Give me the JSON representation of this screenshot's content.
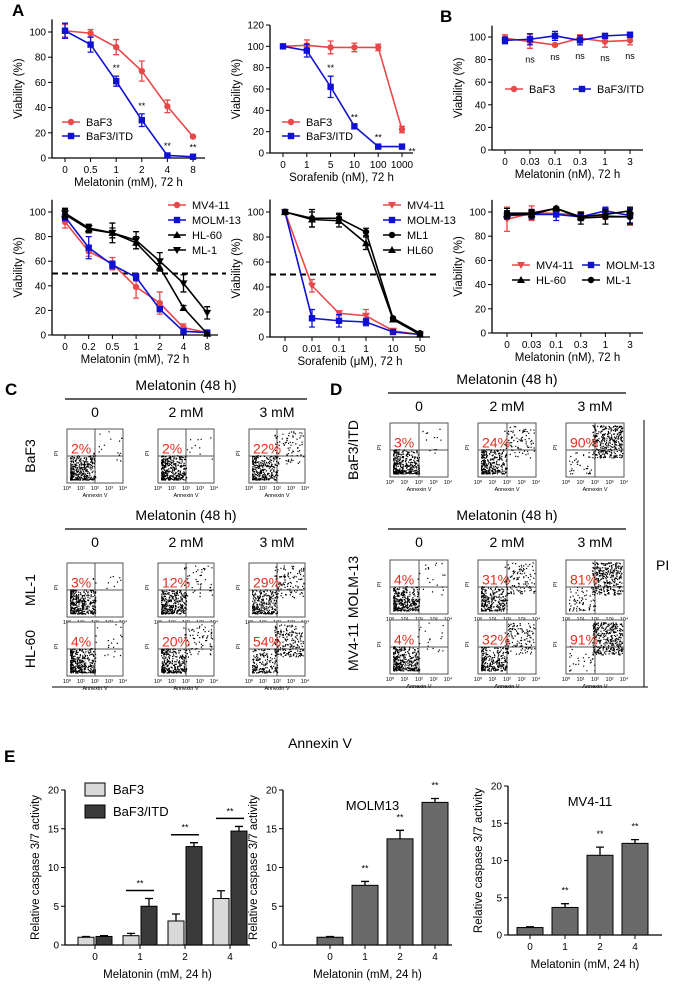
{
  "panel_labels": [
    "A",
    "B",
    "C",
    "D",
    "E"
  ],
  "colors": {
    "red": "#e8484a",
    "blue": "#1010d0",
    "black": "#000000",
    "light_bar": "#d9d9d9",
    "dark_bar": "#3a3a3a",
    "mid_bar": "#6a6a6a",
    "percent": "#e03020"
  },
  "chart_data": [
    {
      "id": "A1",
      "type": "line",
      "xlabel": "Melatonin (mM), 72 h",
      "ylabel": "Viability (%)",
      "categories": [
        "0",
        "0.5",
        "1",
        "2",
        "4",
        "8"
      ],
      "yticks": [
        0,
        20,
        40,
        60,
        80,
        100
      ],
      "ylim": [
        0,
        110
      ],
      "legend": "bottom-left",
      "series": [
        {
          "name": "BaF3",
          "color": "#e8484a",
          "marker": "circle",
          "values": [
            101,
            99,
            88,
            69,
            41,
            17
          ],
          "errors": [
            5,
            3,
            6,
            8,
            5,
            1
          ]
        },
        {
          "name": "BaF3/ITD",
          "color": "#1010d0",
          "marker": "square",
          "values": [
            101,
            90,
            61,
            30,
            2,
            1
          ],
          "errors": [
            6,
            6,
            4,
            5,
            1,
            1
          ]
        }
      ],
      "annotations": [
        {
          "x": "1",
          "text": "**"
        },
        {
          "x": "2",
          "text": "**"
        },
        {
          "x": "4",
          "text": "**"
        },
        {
          "x": "8",
          "text": "**"
        }
      ]
    },
    {
      "id": "A2",
      "type": "line",
      "xlabel": "Sorafenib (nM), 72 h",
      "ylabel": "Viability (%)",
      "categories": [
        "0",
        "1",
        "5",
        "10",
        "100",
        "1000"
      ],
      "yticks": [
        0,
        20,
        40,
        60,
        80,
        100,
        120
      ],
      "ylim": [
        0,
        120
      ],
      "legend": "bottom-left",
      "series": [
        {
          "name": "BaF3",
          "color": "#e8484a",
          "marker": "circle",
          "values": [
            100,
            101,
            99,
            99,
            99,
            22
          ],
          "errors": [
            1,
            5,
            6,
            4,
            3,
            3
          ]
        },
        {
          "name": "BaF3/ITD",
          "color": "#1010d0",
          "marker": "square",
          "values": [
            100,
            96,
            62,
            25,
            6,
            6
          ],
          "errors": [
            1,
            6,
            10,
            1,
            1,
            1
          ]
        }
      ],
      "annotations": [
        {
          "x": "5",
          "text": "**"
        },
        {
          "x": "10",
          "text": "**"
        },
        {
          "x": "100",
          "text": "**"
        },
        {
          "x": "1000",
          "text": "**"
        }
      ]
    },
    {
      "id": "B1",
      "type": "line",
      "xlabel": "Melatonin (nM), 72 h",
      "ylabel": "Viability (%)",
      "categories": [
        "0",
        "0.03",
        "0.1",
        "0.3",
        "1",
        "3"
      ],
      "yticks": [
        0,
        20,
        40,
        60,
        80,
        100
      ],
      "ylim": [
        0,
        110
      ],
      "legend": "middle",
      "series": [
        {
          "name": "BaF3",
          "color": "#e8484a",
          "marker": "circle",
          "values": [
            99,
            96,
            93,
            99,
            96,
            97
          ],
          "errors": [
            3,
            6,
            1,
            3,
            5,
            4
          ]
        },
        {
          "name": "BaF3/ITD",
          "color": "#1010d0",
          "marker": "square",
          "values": [
            97,
            98,
            101,
            97,
            101,
            102
          ],
          "errors": [
            3,
            5,
            4,
            4,
            1,
            2
          ]
        }
      ],
      "annotations": [
        {
          "x": "0.03",
          "text": "ns"
        },
        {
          "x": "0.1",
          "text": "ns"
        },
        {
          "x": "0.3",
          "text": "ns"
        },
        {
          "x": "1",
          "text": "ns"
        },
        {
          "x": "3",
          "text": "ns"
        }
      ]
    },
    {
      "id": "A3",
      "type": "line",
      "xlabel": "Melatonin (mM), 72 h",
      "ylabel": "Viability (%)",
      "categories": [
        "0",
        "0.2",
        "0.5",
        "1",
        "2",
        "4",
        "8"
      ],
      "yticks": [
        0,
        20,
        40,
        60,
        80,
        100
      ],
      "ylim": [
        0,
        110
      ],
      "reference_line": 50,
      "legend": "top-right",
      "series": [
        {
          "name": "MV4-11",
          "color": "#e8484a",
          "marker": "circle",
          "values": [
            92,
            68,
            58,
            39,
            26,
            6,
            2
          ],
          "errors": [
            5,
            4,
            5,
            9,
            9,
            3,
            1
          ]
        },
        {
          "name": "MOLM-13",
          "color": "#1010d0",
          "marker": "square",
          "values": [
            96,
            71,
            57,
            47,
            21,
            3,
            2
          ],
          "errors": [
            3,
            9,
            3,
            3,
            2,
            1,
            1
          ]
        },
        {
          "name": "HL-60",
          "color": "#000000",
          "marker": "triangle-up",
          "values": [
            98,
            86,
            83,
            75,
            55,
            22,
            1
          ],
          "errors": [
            4,
            3,
            4,
            5,
            3,
            2,
            1
          ]
        },
        {
          "name": "ML-1",
          "color": "#000000",
          "marker": "triangle-down",
          "values": [
            99,
            87,
            83,
            77,
            60,
            42,
            18
          ],
          "errors": [
            4,
            3,
            8,
            7,
            7,
            7,
            5
          ]
        }
      ]
    },
    {
      "id": "A4",
      "type": "line",
      "xlabel": "Sorafenib (μM), 72 h",
      "ylabel": "Viability (%)",
      "categories": [
        "0",
        "0.01",
        "0.1",
        "1",
        "10",
        "50"
      ],
      "yticks": [
        0,
        20,
        40,
        60,
        80,
        100
      ],
      "ylim": [
        0,
        110
      ],
      "reference_line": 50,
      "legend": "top-right",
      "series": [
        {
          "name": "MV4-11",
          "color": "#e8484a",
          "marker": "triangle-down",
          "values": [
            100,
            41,
            19,
            17,
            5,
            2
          ],
          "errors": [
            1,
            5,
            2,
            5,
            1,
            1
          ]
        },
        {
          "name": "MOLM-13",
          "color": "#1010d0",
          "marker": "square",
          "values": [
            100,
            15,
            13,
            12,
            4,
            2
          ],
          "errors": [
            1,
            7,
            5,
            3,
            1,
            1
          ]
        },
        {
          "name": "ML1",
          "color": "#000000",
          "marker": "circle",
          "values": [
            100,
            95,
            95,
            84,
            15,
            3
          ],
          "errors": [
            1,
            7,
            4,
            3,
            1,
            1
          ]
        },
        {
          "name": "HL60",
          "color": "#000000",
          "marker": "triangle-up",
          "values": [
            100,
            94,
            93,
            75,
            14,
            2
          ],
          "errors": [
            1,
            6,
            5,
            5,
            1,
            1
          ]
        }
      ]
    },
    {
      "id": "B2",
      "type": "line",
      "xlabel": "Melatonin (nM), 72 h",
      "ylabel": "Viability (%)",
      "categories": [
        "0",
        "0.03",
        "0.1",
        "0.3",
        "1",
        "3"
      ],
      "yticks": [
        0,
        20,
        40,
        60,
        80,
        100
      ],
      "ylim": [
        0,
        110
      ],
      "legend": "middle",
      "series": [
        {
          "name": "MV4-11",
          "color": "#e8484a",
          "marker": "triangle-down",
          "values": [
            94,
            99,
            99,
            97,
            97,
            96
          ],
          "errors": [
            10,
            6,
            3,
            3,
            3,
            7
          ]
        },
        {
          "name": "MOLM-13",
          "color": "#1010d0",
          "marker": "square",
          "values": [
            97,
            98,
            98,
            96,
            101,
            97
          ],
          "errors": [
            3,
            4,
            5,
            3,
            3,
            6
          ]
        },
        {
          "name": "HL-60",
          "color": "#000000",
          "marker": "triangle-up",
          "values": [
            98,
            98,
            103,
            96,
            98,
            101
          ],
          "errors": [
            3,
            3,
            1,
            3,
            3,
            3
          ]
        },
        {
          "name": "ML-1",
          "color": "#000000",
          "marker": "circle",
          "values": [
            99,
            99,
            103,
            95,
            96,
            96
          ],
          "errors": [
            4,
            3,
            1,
            5,
            6,
            6
          ]
        }
      ]
    },
    {
      "id": "E1",
      "type": "bar",
      "xlabel": "Melatonin (mM, 24 h)",
      "ylabel": "Relative caspase 3/7 activity",
      "categories": [
        "0",
        "1",
        "2",
        "4"
      ],
      "yticks": [
        0,
        5,
        10,
        15,
        20
      ],
      "ylim": [
        0,
        20
      ],
      "legend": "top-left",
      "series": [
        {
          "name": "BaF3",
          "color": "#d9d9d9",
          "values": [
            1,
            1.2,
            3.1,
            6
          ],
          "errors": [
            0.1,
            0.3,
            0.9,
            1
          ]
        },
        {
          "name": "BaF3/ITD",
          "color": "#3a3a3a",
          "values": [
            1.1,
            5,
            12.7,
            14.7
          ],
          "errors": [
            0.1,
            1,
            0.5,
            0.6
          ]
        }
      ],
      "annotations": [
        {
          "x": "1",
          "text": "**"
        },
        {
          "x": "2",
          "text": "**"
        },
        {
          "x": "4",
          "text": "**"
        }
      ]
    },
    {
      "id": "E2",
      "type": "bar",
      "title": "MOLM13",
      "xlabel": "Melatonin (mM, 24 h)",
      "ylabel": "Relative caspase 3/7 activity",
      "categories": [
        "0",
        "1",
        "2",
        "4"
      ],
      "yticks": [
        0,
        5,
        10,
        15,
        20
      ],
      "ylim": [
        0,
        20
      ],
      "series": [
        {
          "color": "#6a6a6a",
          "values": [
            1,
            7.7,
            13.7,
            18.4
          ],
          "errors": [
            0.1,
            0.5,
            1.1,
            0.5
          ]
        }
      ],
      "annotations": [
        {
          "x": "1",
          "text": "**"
        },
        {
          "x": "2",
          "text": "**"
        },
        {
          "x": "4",
          "text": "**"
        }
      ]
    },
    {
      "id": "E3",
      "type": "bar",
      "title": "MV4-11",
      "xlabel": "Melatonin (mM, 24 h)",
      "ylabel": "Relative caspase 3/7 activity",
      "categories": [
        "0",
        "1",
        "2",
        "4"
      ],
      "yticks": [
        0,
        5,
        10,
        15,
        20
      ],
      "ylim": [
        0,
        20
      ],
      "series": [
        {
          "color": "#6a6a6a",
          "values": [
            1,
            3.7,
            10.7,
            12.3
          ],
          "errors": [
            0.1,
            0.5,
            1.1,
            0.5
          ]
        }
      ],
      "annotations": [
        {
          "x": "1",
          "text": "**"
        },
        {
          "x": "2",
          "text": "**"
        },
        {
          "x": "4",
          "text": "**"
        }
      ]
    }
  ],
  "flow": {
    "header": "Melatonin (48 h)",
    "columns": [
      "0",
      "2 mM",
      "3 mM"
    ],
    "x_axis": "Annexin V",
    "y_axis": "PI",
    "tick_labels": [
      "10⁰",
      "10¹",
      "10²",
      "10³",
      "10⁴"
    ],
    "common_x_label": "Annexin V",
    "common_y_label": "PI",
    "C": [
      {
        "cell": "BaF3",
        "percents": [
          "2%",
          "2%",
          "22%"
        ]
      },
      {
        "cell": "ML-1",
        "percents": [
          "3%",
          "12%",
          "29%"
        ]
      },
      {
        "cell": "HL-60",
        "percents": [
          "4%",
          "20%",
          "54%"
        ]
      }
    ],
    "D": [
      {
        "cell": "BaF3/ITD",
        "percents": [
          "3%",
          "24%",
          "90%"
        ]
      },
      {
        "cell": "MOLM-13",
        "percents": [
          "4%",
          "31%",
          "81%"
        ]
      },
      {
        "cell": "MV4-11",
        "percents": [
          "4%",
          "32%",
          "91%"
        ]
      }
    ]
  }
}
